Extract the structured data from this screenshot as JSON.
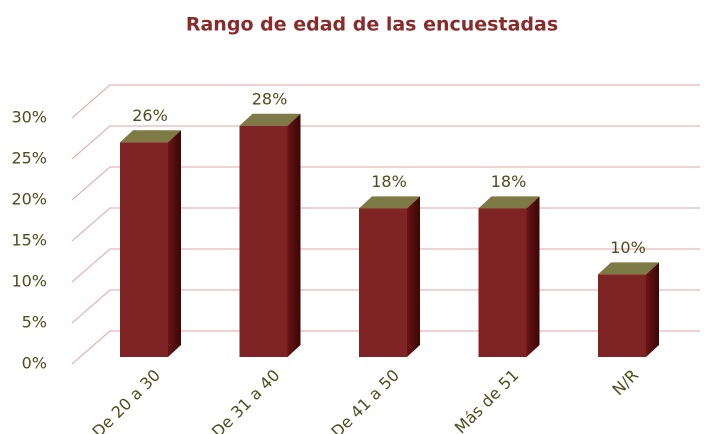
{
  "chart_data": {
    "type": "bar3d",
    "title": "Rango de edad de las encuestadas",
    "categories": [
      "De 20 a 30",
      "De 31 a 40",
      "De 41 a 50",
      "Más de 51",
      "N/R"
    ],
    "values": [
      26,
      28,
      18,
      18,
      10
    ],
    "value_labels": [
      "26%",
      "28%",
      "18%",
      "18%",
      "10%"
    ],
    "color": "#7f2424",
    "top_color": "#7d7a45",
    "ylim": [
      0,
      30
    ],
    "yticks": [
      {
        "value": 0,
        "label": "0%"
      },
      {
        "value": 5,
        "label": "5%"
      },
      {
        "value": 10,
        "label": "10%"
      },
      {
        "value": 15,
        "label": "15%"
      },
      {
        "value": 20,
        "label": "20%"
      },
      {
        "value": 25,
        "label": "25%"
      },
      {
        "value": 30,
        "label": "30%"
      }
    ],
    "grid": true
  }
}
